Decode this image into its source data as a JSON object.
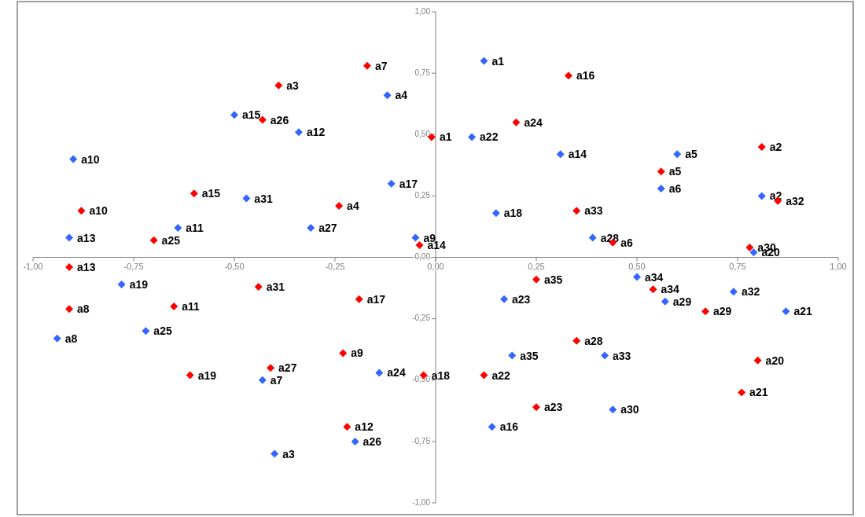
{
  "chart_data": {
    "type": "scatter",
    "marker": "diamond",
    "grid": false,
    "xlim": [
      -1,
      1
    ],
    "ylim": [
      -1,
      1
    ],
    "xticks": [
      {
        "value": -1,
        "label": "-1,00"
      },
      {
        "value": -0.75,
        "label": "-0,75"
      },
      {
        "value": -0.5,
        "label": "-0,50"
      },
      {
        "value": -0.25,
        "label": "-0,25"
      },
      {
        "value": 0,
        "label": "0,00"
      },
      {
        "value": 0.25,
        "label": "0,25"
      },
      {
        "value": 0.5,
        "label": "0,50"
      },
      {
        "value": 0.75,
        "label": "0,75"
      },
      {
        "value": 1,
        "label": "1,00"
      }
    ],
    "yticks": [
      {
        "value": -1,
        "label": "-1,00"
      },
      {
        "value": -0.75,
        "label": "-0,75"
      },
      {
        "value": -0.5,
        "label": "-0,50"
      },
      {
        "value": -0.25,
        "label": "-0,25"
      },
      {
        "value": 0,
        "label": "0,00"
      },
      {
        "value": 0.25,
        "label": "0,25"
      },
      {
        "value": 0.5,
        "label": "0,50"
      },
      {
        "value": 0.75,
        "label": "0,75"
      },
      {
        "value": 1,
        "label": "1,00"
      }
    ],
    "series": [
      {
        "color": "#3366ff",
        "x": [
          0.12,
          -0.12,
          -0.5,
          -0.34,
          0.09,
          -0.9,
          0.31,
          0.6,
          0.56,
          -0.11,
          -0.47,
          0.81,
          0.15,
          -0.64,
          -0.31,
          -0.91,
          -0.05,
          0.39,
          0.79,
          0.5,
          -0.78,
          0.74,
          0.57,
          0.17,
          0.87,
          -0.72,
          -0.94,
          0.19,
          0.42,
          -0.14,
          -0.43,
          0.44,
          0.14,
          -0.2,
          -0.4
        ],
        "values": [
          0.8,
          0.66,
          0.58,
          0.51,
          0.49,
          0.4,
          0.42,
          0.42,
          0.28,
          0.3,
          0.24,
          0.25,
          0.18,
          0.12,
          0.12,
          0.08,
          0.08,
          0.08,
          0.02,
          -0.08,
          -0.11,
          -0.14,
          -0.18,
          -0.17,
          -0.22,
          -0.3,
          -0.33,
          -0.4,
          -0.4,
          -0.47,
          -0.5,
          -0.62,
          -0.69,
          -0.75,
          -0.8
        ],
        "value_labels": [
          "a1",
          "a4",
          "a15",
          "a12",
          "a22",
          "a10",
          "a14",
          "a5",
          "a6",
          "a17",
          "a31",
          "a2",
          "a18",
          "a11",
          "a27",
          "a13",
          "a9",
          "a28",
          "a20",
          "a34",
          "a19",
          "a32",
          "a29",
          "a23",
          "a21",
          "a25",
          "a8",
          "a35",
          "a33",
          "a24",
          "a7",
          "a30",
          "a16",
          "a26",
          "a3"
        ]
      },
      {
        "color": "#ff0000",
        "x": [
          -0.17,
          0.33,
          -0.39,
          -0.43,
          0.2,
          -0.01,
          0.81,
          0.56,
          -0.6,
          0.35,
          0.85,
          -0.88,
          -0.24,
          -0.7,
          -0.04,
          0.44,
          0.78,
          -0.91,
          -0.44,
          -0.19,
          0.54,
          0.67,
          -0.65,
          -0.91,
          0.35,
          0.25,
          -0.23,
          0.8,
          -0.41,
          -0.61,
          -0.03,
          0.12,
          0.76,
          0.25,
          -0.22
        ],
        "values": [
          0.78,
          0.74,
          0.7,
          0.56,
          0.55,
          0.49,
          0.45,
          0.35,
          0.26,
          0.19,
          0.23,
          0.19,
          0.21,
          0.07,
          0.05,
          0.06,
          0.04,
          -0.04,
          -0.12,
          -0.17,
          -0.13,
          -0.22,
          -0.2,
          -0.21,
          -0.34,
          -0.09,
          -0.39,
          -0.42,
          -0.45,
          -0.48,
          -0.48,
          -0.48,
          -0.55,
          -0.61,
          -0.69
        ],
        "value_labels": [
          "a7",
          "a16",
          "a3",
          "a26",
          "a24",
          "a1",
          "a2",
          "a5",
          "a15",
          "a33",
          "a32",
          "a10",
          "a4",
          "a25",
          "a14",
          "a6",
          "a30",
          "a13",
          "a31",
          "a17",
          "a34",
          "a29",
          "a11",
          "a8",
          "a28",
          "a35",
          "a9",
          "a20",
          "a27",
          "a19",
          "a18",
          "a22",
          "a21",
          "a23",
          "a12"
        ]
      }
    ]
  }
}
